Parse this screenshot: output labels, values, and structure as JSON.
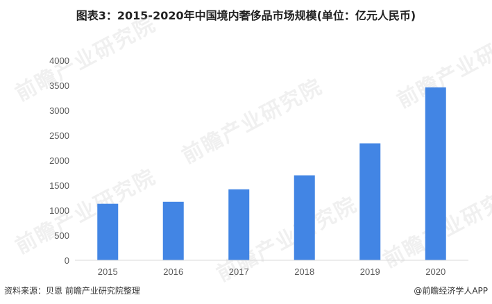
{
  "title": "图表3：2015-2020年中国境内奢侈品市场规模(单位：亿元人民币)",
  "footer": {
    "source": "资料来源：贝恩 前瞻产业研究院整理",
    "credit": "@前瞻经济学人APP"
  },
  "watermark_text": "前瞻产业研究院",
  "chart_data": {
    "type": "bar",
    "title": "图表3：2015-2020年中国境内奢侈品市场规模(单位：亿元人民币)",
    "xlabel": "",
    "ylabel": "",
    "categories": [
      "2015",
      "2016",
      "2017",
      "2018",
      "2019",
      "2020"
    ],
    "values": [
      1130,
      1170,
      1420,
      1700,
      2340,
      3460
    ],
    "ylim": [
      0,
      4000
    ],
    "yticks": [
      0,
      500,
      1000,
      1500,
      2000,
      2500,
      3000,
      3500,
      4000
    ],
    "grid": false,
    "legend": "none",
    "bar_color": "#4285e4",
    "axis_color": "#d9d9d9"
  }
}
